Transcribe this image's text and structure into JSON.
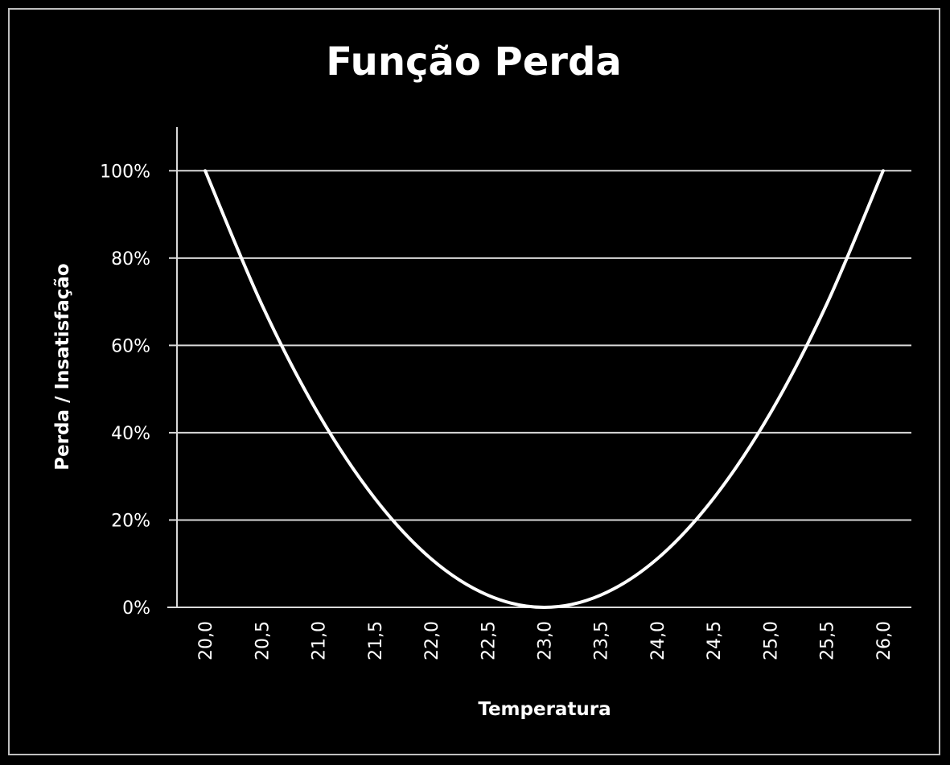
{
  "chart_data": {
    "type": "line",
    "title": "Função Perda",
    "xlabel": "Temperatura",
    "ylabel": "Perda / Insatisfação",
    "categories": [
      "20,0",
      "20,5",
      "21,0",
      "21,5",
      "22,0",
      "22,5",
      "23,0",
      "23,5",
      "24,0",
      "24,5",
      "25,0",
      "25,5",
      "26,0"
    ],
    "x": [
      20.0,
      20.5,
      21.0,
      21.5,
      22.0,
      22.5,
      23.0,
      23.5,
      24.0,
      24.5,
      25.0,
      25.5,
      26.0
    ],
    "series": [
      {
        "name": "Perda",
        "values": [
          1.0,
          0.694,
          0.444,
          0.25,
          0.111,
          0.028,
          0.0,
          0.028,
          0.111,
          0.25,
          0.444,
          0.694,
          1.0
        ]
      }
    ],
    "yticks": [
      0,
      0.2,
      0.4,
      0.6,
      0.8,
      1.0
    ],
    "ytick_labels": [
      "0%",
      "20%",
      "40%",
      "60%",
      "80%",
      "100%"
    ],
    "ylim": [
      0,
      1.1
    ],
    "xlim": [
      19.75,
      26.25
    ],
    "grid": true,
    "legend": "none",
    "colors": {
      "background": "#000000",
      "line": "#ffffff",
      "grid": "#d9d9d9",
      "text": "#ffffff",
      "frame": "#bfbfbf"
    }
  }
}
